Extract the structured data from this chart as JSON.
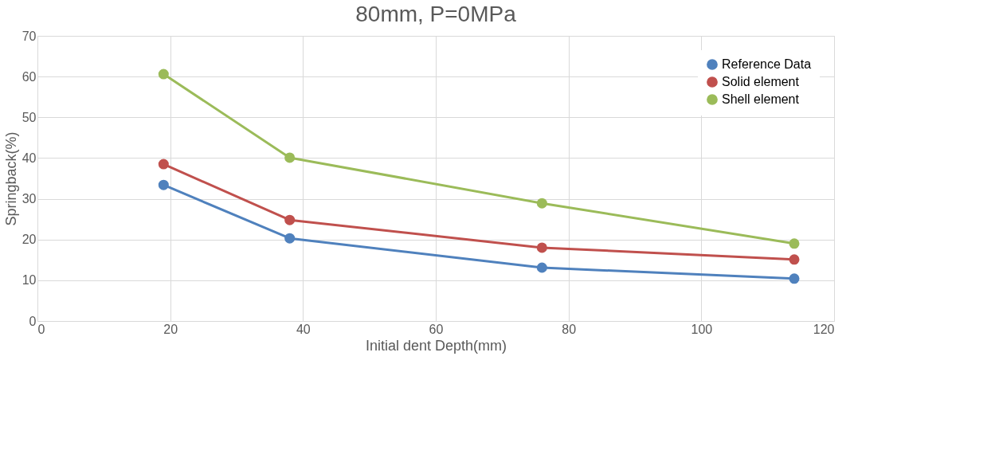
{
  "chart_data": {
    "type": "line",
    "title": "80mm, P=0MPa",
    "xlabel": "Initial dent Depth(mm)",
    "ylabel": "Springback(%)",
    "x": [
      19,
      38,
      76,
      114
    ],
    "series": [
      {
        "name": "Reference Data",
        "color": "#4f81bd",
        "values": [
          33.4,
          20.3,
          13.1,
          10.4
        ]
      },
      {
        "name": "Solid element",
        "color": "#c0504d",
        "values": [
          38.5,
          24.8,
          18.0,
          15.1
        ]
      },
      {
        "name": "Shell element",
        "color": "#9bbb59",
        "values": [
          60.6,
          40.1,
          28.9,
          19.0
        ]
      }
    ],
    "xlim": [
      0,
      120
    ],
    "xticks": [
      0,
      20,
      40,
      60,
      80,
      100,
      120
    ],
    "ylim": [
      0,
      70
    ],
    "yticks": [
      0,
      10,
      20,
      30,
      40,
      50,
      60,
      70
    ],
    "grid": true,
    "legend": "top right",
    "marker": "circle",
    "line_style": "solid"
  }
}
